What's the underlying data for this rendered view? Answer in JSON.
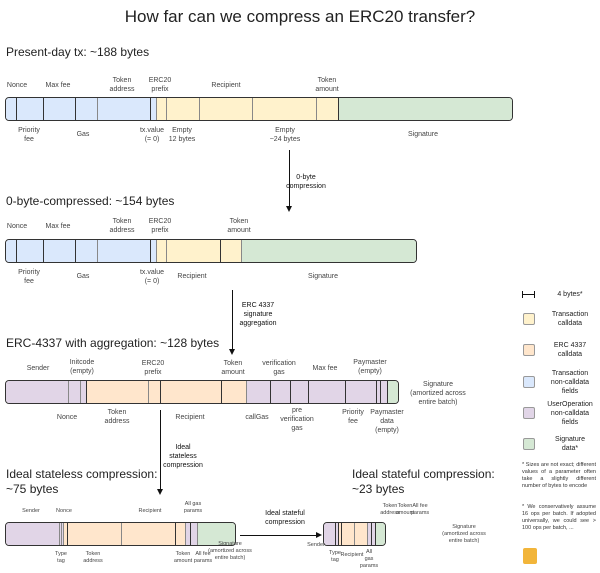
{
  "title": "How far can we compress an ERC20 transfer?",
  "colors": {
    "tx_calldata": "#fff2cc",
    "erc4337_calldata": "#ffe6cc",
    "tx_noncalldata": "#dae8fc",
    "userop_noncalldata": "#e1d5e7",
    "signature": "#d5e8d4"
  },
  "present": {
    "heading": "Present-day tx: ~188 bytes",
    "above": [
      "Nonce",
      "Max fee",
      "Token\naddress",
      "ERC20\nprefix",
      "Recipient",
      "Token\namount"
    ],
    "below": [
      "Priority\nfee",
      "Gas",
      "tx.value\n(= 0)",
      "Empty\n12 bytes",
      "Empty\n~24 bytes",
      "Signature"
    ]
  },
  "zero": {
    "heading": "0-byte-compressed: ~154 bytes",
    "above": [
      "Nonce",
      "Max fee",
      "Token\naddress",
      "ERC20\nprefix",
      "Token\namount"
    ],
    "below": [
      "Priority\nfee",
      "Gas",
      "tx.value\n(= 0)",
      "Recipient",
      "Signature"
    ]
  },
  "aa": {
    "heading": "ERC-4337 with aggregation: ~128 bytes",
    "above": [
      "Sender",
      "Initcode\n(empty)",
      "ERC20\nprefix",
      "Token\namount",
      "verification\ngas",
      "Max fee",
      "Paymaster\n(empty)"
    ],
    "below": [
      "Nonce",
      "Token\naddress",
      "Recipient",
      "callGas",
      "pre\nverification\ngas",
      "Priority\nfee",
      "Paymaster\ndata\n(empty)"
    ],
    "signature": "Signature\n(amortized across\nentire batch)"
  },
  "stateless": {
    "heading": "Ideal stateless compression:\n~75 bytes",
    "above": [
      "Sender",
      "Nonce",
      "Recipient",
      "All gas\nparams"
    ],
    "below": [
      "Type\ntag",
      "Token\naddress",
      "Token\namount",
      "All fee\nparams"
    ],
    "signature": "Signature\n(amortized across\nentire batch)"
  },
  "stateful": {
    "heading": "Ideal stateful compression:\n~23 bytes",
    "above": [
      "Token\naddress",
      "Token\namount",
      "All fee\nparams"
    ],
    "below": [
      "Sender",
      "Type\ntag",
      "Recipient",
      "All\ngas\nparams"
    ],
    "signature": "Signature\n(amortized across\nentire batch)"
  },
  "arrows": [
    "0-byte\ncompression",
    "ERC 4337\nsignature\naggregation",
    "Ideal\nstateless\ncompression",
    "Ideal stateful\ncompression"
  ],
  "legend": {
    "scale": "4 bytes*",
    "items": [
      "Transaction\ncalldata",
      "ERC 4337\ncalldata",
      "Transaction\nnon-calldata\nfields",
      "UserOperation\nnon-calldata\nfields",
      "Signature\ndata*"
    ],
    "notes": [
      "* Sizes are not exact; different values of a parameter often take a slightly different number of bytes to encode",
      "* We conservatively assume 16 ops per batch. If adopted universally, we could see > 100 ops per batch, ..."
    ]
  }
}
